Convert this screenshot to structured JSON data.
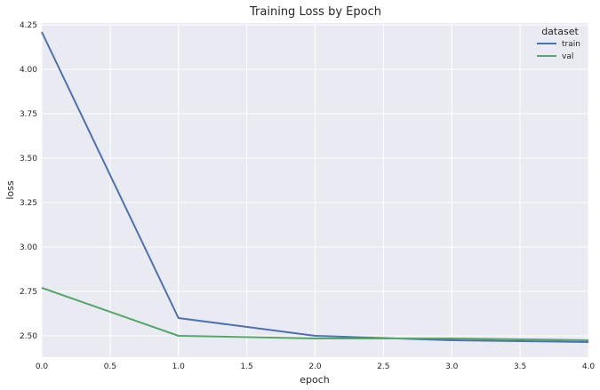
{
  "chart_data": {
    "type": "line",
    "title": "Training Loss by Epoch",
    "xlabel": "epoch",
    "ylabel": "loss",
    "xlim": [
      0,
      4
    ],
    "ylim": [
      2.38,
      4.26
    ],
    "x_ticks": [
      "0.0",
      "0.5",
      "1.0",
      "1.5",
      "2.0",
      "2.5",
      "3.0",
      "3.5",
      "4.0"
    ],
    "y_ticks": [
      "2.50",
      "2.75",
      "3.00",
      "3.25",
      "3.50",
      "3.75",
      "4.00",
      "4.25"
    ],
    "grid": true,
    "legend": {
      "title": "dataset",
      "position": "top-right"
    },
    "series": [
      {
        "name": "train",
        "color": "#4C72B0",
        "x": [
          0,
          1,
          2,
          3,
          4
        ],
        "y": [
          4.21,
          2.6,
          2.5,
          2.475,
          2.465
        ]
      },
      {
        "name": "val",
        "color": "#55A868",
        "x": [
          0,
          1,
          2,
          3,
          4
        ],
        "y": [
          2.77,
          2.5,
          2.485,
          2.485,
          2.475
        ]
      }
    ],
    "background": "#EAEAF2",
    "grid_color": "#FFFFFF"
  }
}
